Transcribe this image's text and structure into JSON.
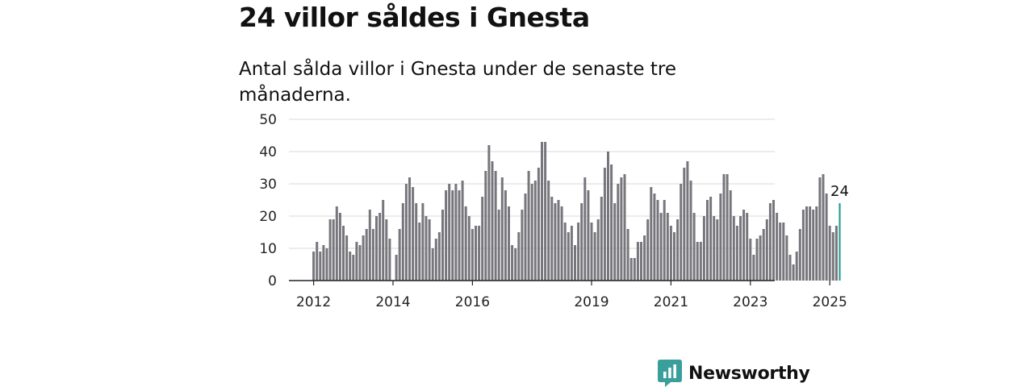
{
  "title": "24 villor såldes i Gnesta",
  "subtitle": "Antal sålda villor i Gnesta under de senaste tre månaderna.",
  "brand": {
    "name": "Newsworthy",
    "icon": "newsworthy-logo-icon",
    "color": "#3a9e9a"
  },
  "colors": {
    "bar": "#76767c",
    "highlight": "#2a9d95",
    "grid": "#d9d9d9",
    "axis": "#222222"
  },
  "chart_data": {
    "type": "bar",
    "x_start": "2012-01",
    "xticks": [
      "2012",
      "2014",
      "2016",
      "2019",
      "2021",
      "2023",
      "2025"
    ],
    "ylim": [
      0,
      50
    ],
    "yticks": [
      0,
      10,
      20,
      30,
      40,
      50
    ],
    "grid": true,
    "values": [
      9,
      12,
      9,
      11,
      10,
      19,
      19,
      23,
      21,
      17,
      14,
      9,
      8,
      12,
      11,
      14,
      16,
      22,
      16,
      20,
      21,
      25,
      19,
      13,
      0,
      8,
      16,
      24,
      30,
      32,
      29,
      24,
      18,
      24,
      20,
      19,
      10,
      13,
      15,
      22,
      28,
      30,
      28,
      30,
      28,
      31,
      23,
      20,
      16,
      17,
      17,
      26,
      34,
      42,
      37,
      34,
      22,
      32,
      28,
      23,
      11,
      10,
      15,
      22,
      27,
      34,
      30,
      31,
      35,
      43,
      43,
      31,
      26,
      24,
      25,
      23,
      18,
      15,
      17,
      11,
      18,
      24,
      32,
      28,
      18,
      15,
      19,
      26,
      35,
      40,
      36,
      24,
      30,
      32,
      33,
      16,
      7,
      7,
      12,
      12,
      14,
      19,
      29,
      27,
      25,
      21,
      25,
      21,
      17,
      15,
      19,
      30,
      35,
      37,
      31,
      21,
      12,
      12,
      20,
      25,
      26,
      20,
      19,
      27,
      33,
      33,
      28,
      20,
      17,
      20,
      22,
      21,
      13,
      8,
      13,
      14,
      16,
      19,
      24,
      25,
      21,
      18,
      18,
      14,
      8,
      5,
      9,
      16,
      22,
      23,
      23,
      22,
      23,
      32,
      33,
      27,
      17,
      15,
      17,
      24
    ],
    "highlight_index": 159,
    "highlight_label": "24"
  }
}
